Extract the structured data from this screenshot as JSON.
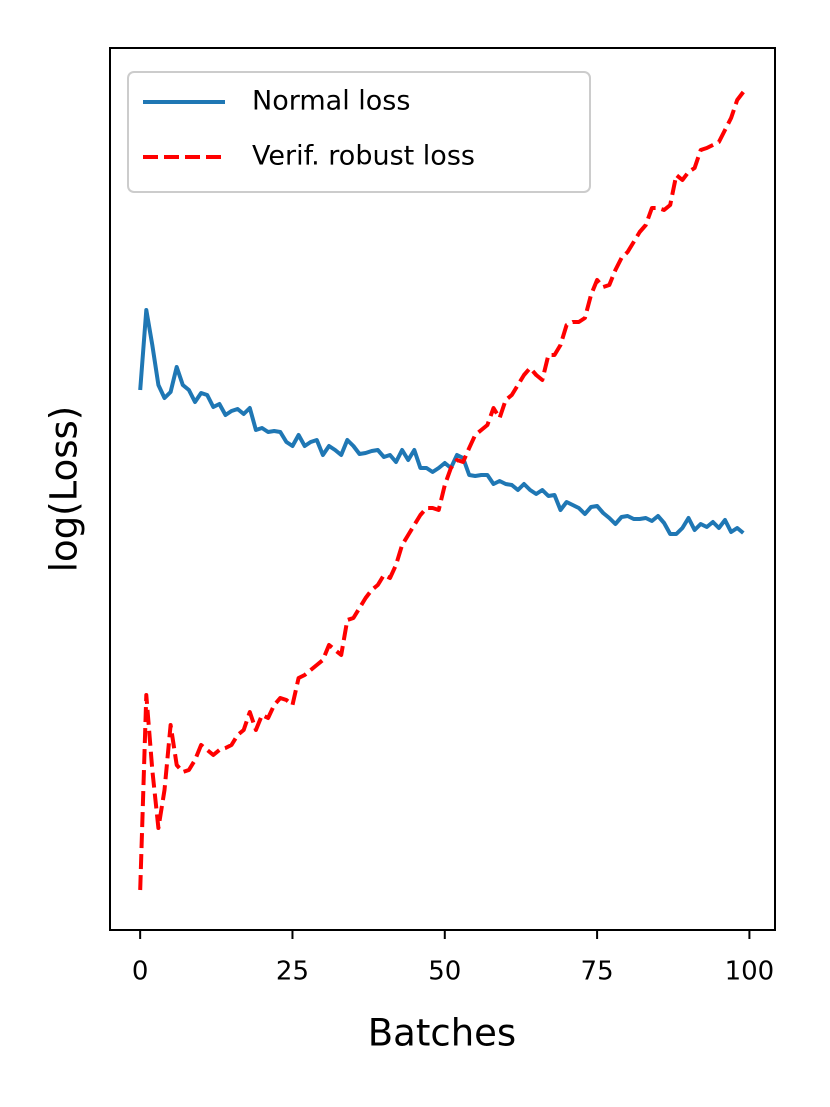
{
  "chart_data": {
    "type": "line",
    "xlabel": "Batches",
    "ylabel": "log(Loss)",
    "x": [
      0,
      1,
      2,
      3,
      4,
      5,
      6,
      7,
      8,
      9,
      10,
      11,
      12,
      13,
      14,
      15,
      16,
      17,
      18,
      19,
      20,
      21,
      22,
      23,
      24,
      25,
      26,
      27,
      28,
      29,
      30,
      31,
      32,
      33,
      34,
      35,
      36,
      37,
      38,
      39,
      40,
      41,
      42,
      43,
      44,
      45,
      46,
      47,
      48,
      49,
      50,
      51,
      52,
      53,
      54,
      55,
      56,
      57,
      58,
      59,
      60,
      61,
      62,
      63,
      64,
      65,
      66,
      67,
      68,
      69,
      70,
      71,
      72,
      73,
      74,
      75,
      76,
      77,
      78,
      79,
      80,
      81,
      82,
      83,
      84,
      85,
      86,
      87,
      88,
      89,
      90,
      91,
      92,
      93,
      94,
      95,
      96,
      97,
      98,
      99
    ],
    "series": [
      {
        "name": "Normal loss",
        "color": "#1f77b4",
        "dash": "solid",
        "values": [
          540,
          620,
          585,
          545,
          532,
          538,
          563,
          545,
          540,
          528,
          537,
          535,
          523,
          526,
          515,
          519,
          521,
          516,
          522,
          500,
          502,
          498,
          499,
          498,
          488,
          484,
          495,
          484,
          488,
          490,
          475,
          484,
          480,
          475,
          490,
          484,
          476,
          477,
          479,
          480,
          473,
          475,
          468,
          480,
          470,
          480,
          462,
          462,
          458,
          462,
          467,
          462,
          475,
          472,
          455,
          454,
          455,
          455,
          446,
          449,
          446,
          445,
          440,
          446,
          440,
          436,
          440,
          434,
          435,
          420,
          428,
          425,
          422,
          416,
          423,
          424,
          417,
          412,
          406,
          413,
          414,
          411,
          411,
          412,
          409,
          414,
          407,
          396,
          396,
          402,
          412,
          400,
          406,
          403,
          408,
          402,
          410,
          398,
          402,
          397
        ]
      },
      {
        "name": "Verif. robust loss",
        "color": "#ff0000",
        "dash": "dashed",
        "values": [
          40,
          235,
          160,
          102,
          140,
          205,
          165,
          158,
          160,
          170,
          185,
          180,
          175,
          180,
          182,
          185,
          195,
          200,
          218,
          200,
          215,
          212,
          225,
          232,
          230,
          225,
          252,
          255,
          260,
          265,
          270,
          285,
          280,
          275,
          310,
          312,
          322,
          332,
          340,
          345,
          355,
          352,
          365,
          385,
          395,
          405,
          415,
          422,
          422,
          420,
          445,
          462,
          470,
          468,
          482,
          495,
          500,
          505,
          522,
          512,
          530,
          535,
          545,
          555,
          562,
          555,
          550,
          575,
          575,
          585,
          605,
          608,
          608,
          612,
          635,
          650,
          643,
          645,
          660,
          672,
          678,
          688,
          698,
          705,
          722,
          722,
          720,
          725,
          755,
          750,
          758,
          762,
          780,
          782,
          785,
          788,
          800,
          812,
          830,
          838
        ]
      }
    ],
    "xlim": [
      -4.95,
      104.2
    ],
    "xticks": [
      0,
      25,
      50,
      75,
      100
    ],
    "ylim": [
      0,
      882
    ],
    "legend": "upper left"
  }
}
